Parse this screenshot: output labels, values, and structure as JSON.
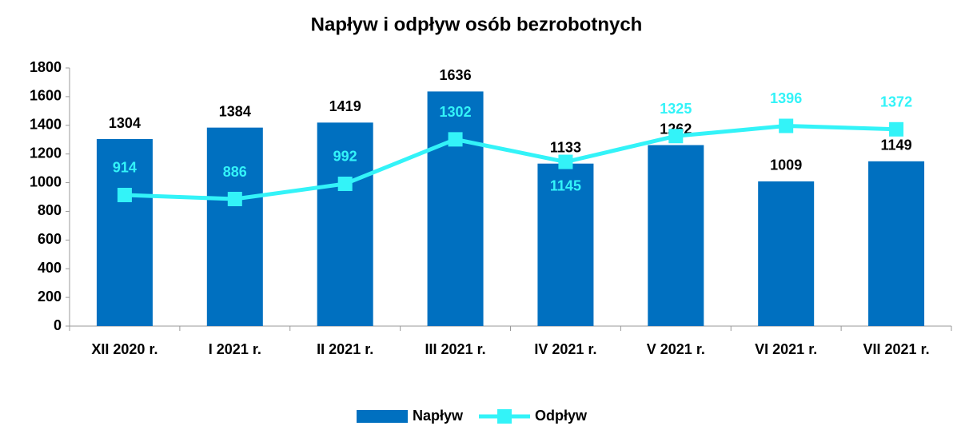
{
  "chart_data": {
    "type": "bar",
    "title": "Napływ i odpływ osób bezrobotnych",
    "categories": [
      "XII 2020 r.",
      "I 2021 r.",
      "II 2021 r.",
      "III 2021 r.",
      "IV 2021 r.",
      "V 2021 r.",
      "VI 2021 r.",
      "VII 2021 r."
    ],
    "series": [
      {
        "name": "Napływ",
        "type": "bar",
        "color": "#0070c0",
        "values": [
          1304,
          1384,
          1419,
          1636,
          1133,
          1262,
          1009,
          1149
        ]
      },
      {
        "name": "Odpływ",
        "type": "line",
        "color": "#33f3f8",
        "values": [
          914,
          886,
          992,
          1302,
          1145,
          1325,
          1396,
          1372
        ]
      }
    ],
    "ylim": [
      0,
      1800
    ],
    "yticks": [
      0,
      200,
      400,
      600,
      800,
      1000,
      1200,
      1400,
      1600,
      1800
    ],
    "legend": "bottom"
  }
}
